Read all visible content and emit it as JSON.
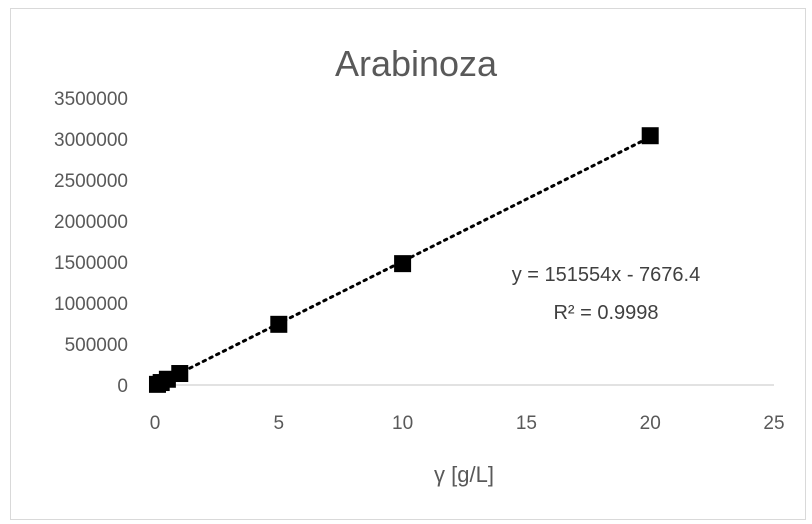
{
  "chart_data": {
    "type": "scatter",
    "title": "Arabinoza",
    "xlabel": "γ [g/L]",
    "ylabel": "",
    "xlim": [
      0,
      25
    ],
    "ylim": [
      0,
      3500000
    ],
    "xticks": [
      "0",
      "5",
      "10",
      "15",
      "20",
      "25"
    ],
    "yticks": [
      "0",
      "500000",
      "1000000",
      "1500000",
      "2000000",
      "2500000",
      "3000000",
      "3500000"
    ],
    "grid": false,
    "legend": "none",
    "series": [
      {
        "marker": "square",
        "color": "#000000",
        "points": [
          {
            "x": 0.1,
            "y": 8000
          },
          {
            "x": 0.25,
            "y": 30000
          },
          {
            "x": 0.5,
            "y": 70000
          },
          {
            "x": 1,
            "y": 140000
          },
          {
            "x": 5,
            "y": 740000
          },
          {
            "x": 10,
            "y": 1480000
          },
          {
            "x": 20,
            "y": 3040000
          }
        ]
      }
    ],
    "trendline": {
      "style": "dotted",
      "color": "#000000",
      "slope": 151554,
      "intercept": -7676.4,
      "x_range": [
        0,
        20
      ]
    },
    "annotations": [
      "y = 151554x - 7676.4",
      "R² = 0.9998"
    ]
  }
}
